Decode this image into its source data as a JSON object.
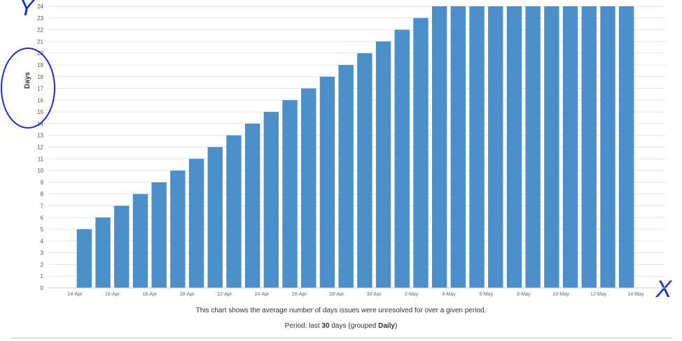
{
  "chart_data": {
    "type": "bar",
    "y_label": "Days",
    "color": "#4a8fca",
    "xticks": [
      "14-Apr",
      "16-Apr",
      "18-Apr",
      "20-Apr",
      "22-Apr",
      "24-Apr",
      "26-Apr",
      "28-Apr",
      "30-Apr",
      "2-May",
      "4-May",
      "6-May",
      "8-May",
      "10-May",
      "12-May",
      "14-May"
    ],
    "values": [
      5,
      6,
      7,
      8,
      9,
      10,
      11,
      12,
      13,
      14,
      15,
      16,
      17,
      18,
      19,
      20,
      21,
      22,
      23,
      24,
      24,
      24,
      24,
      24,
      24,
      24,
      24,
      24,
      24,
      24
    ],
    "ylim": [
      0,
      24
    ],
    "yticks": [
      0,
      1,
      2,
      3,
      4,
      5,
      6,
      7,
      8,
      9,
      10,
      11,
      12,
      13,
      14,
      15,
      16,
      17,
      18,
      19,
      20,
      21,
      22,
      23,
      24
    ],
    "grid": true,
    "annotations": [
      "Y",
      "X"
    ]
  },
  "footer": {
    "description": "This chart shows the average number of days issues were unresolved for over a given period.",
    "period": [
      "Period: last ",
      "30",
      " days (grouped ",
      "Daily",
      ")"
    ]
  }
}
